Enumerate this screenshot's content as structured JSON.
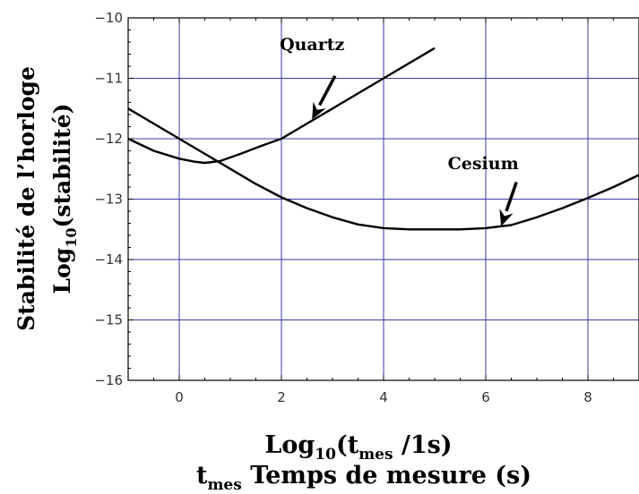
{
  "chart_data": {
    "type": "line",
    "xlabel": {
      "pre": "Log",
      "sub": "10",
      "mid": "(t",
      "sub2": "mes",
      "post": " /1s)"
    },
    "xlabel2": {
      "pre": "t",
      "sub": "mes",
      "post": " Temps de mesure (s)"
    },
    "ylabel": "Stabilité de l’horloge",
    "ylabel2": {
      "pre": "Log",
      "sub": "10",
      "post": "(stabilité)"
    },
    "xlim": [
      -1,
      9
    ],
    "ylim": [
      -16,
      -10
    ],
    "grid": true,
    "xticks": [
      {
        "value": 0,
        "label": "0"
      },
      {
        "value": 2,
        "label": "2"
      },
      {
        "value": 4,
        "label": "4"
      },
      {
        "value": 6,
        "label": "6"
      },
      {
        "value": 8,
        "label": "8"
      }
    ],
    "yticks": [
      {
        "value": -10,
        "label": "−10"
      },
      {
        "value": -11,
        "label": "−11"
      },
      {
        "value": -12,
        "label": "−12"
      },
      {
        "value": -13,
        "label": "−13"
      },
      {
        "value": -14,
        "label": "−14"
      },
      {
        "value": -15,
        "label": "−15"
      },
      {
        "value": -16,
        "label": "−16"
      }
    ],
    "series": [
      {
        "name": "Quartz",
        "x": [
          -1,
          -0.5,
          0,
          0.3,
          0.5,
          0.8,
          1.2,
          1.6,
          2,
          2.5,
          3,
          3.5,
          4,
          4.5,
          5
        ],
        "y": [
          -12,
          -12.2,
          -12.33,
          -12.38,
          -12.4,
          -12.37,
          -12.25,
          -12.12,
          -12.0,
          -11.75,
          -11.5,
          -11.25,
          -11.0,
          -10.75,
          -10.5
        ]
      },
      {
        "name": "Cesium",
        "x": [
          -1,
          -0.5,
          0,
          0.5,
          1,
          1.5,
          2,
          2.5,
          3,
          3.5,
          4,
          4.5,
          5,
          5.5,
          6,
          6.5,
          7,
          7.5,
          8,
          8.5,
          9
        ],
        "y": [
          -11.5,
          -11.75,
          -12.0,
          -12.25,
          -12.5,
          -12.75,
          -12.97,
          -13.15,
          -13.3,
          -13.42,
          -13.48,
          -13.5,
          -13.5,
          -13.5,
          -13.48,
          -13.43,
          -13.3,
          -13.15,
          -12.98,
          -12.8,
          -12.6
        ]
      }
    ],
    "annotations": [
      {
        "text": "Quartz",
        "series": "Quartz",
        "label_x": 2.6,
        "label_y": -10.53,
        "arrow_from": [
          3.05,
          -10.96
        ],
        "arrow_to": [
          2.6,
          -11.68
        ]
      },
      {
        "text": "Cesium",
        "series": "Cesium",
        "label_x": 5.95,
        "label_y": -12.5,
        "arrow_from": [
          6.6,
          -12.72
        ],
        "arrow_to": [
          6.3,
          -13.45
        ]
      }
    ],
    "colors": {
      "grid": "#3a3aa8",
      "line": "#000000"
    }
  }
}
